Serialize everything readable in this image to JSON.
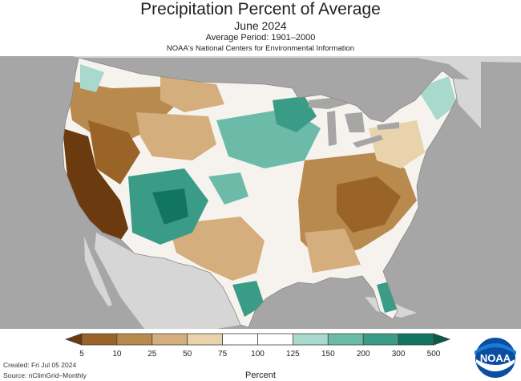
{
  "header": {
    "title": "Precipitation Percent of Average",
    "subtitle": "June 2024",
    "period": "Average Period: 1901–2000",
    "source_org": "NOAA's National Centers for Environmental Information"
  },
  "legend": {
    "ticks": [
      "5",
      "10",
      "25",
      "50",
      "75",
      "100",
      "125",
      "150",
      "200",
      "300",
      "500"
    ],
    "colors": [
      "#6b3a0e",
      "#9a6428",
      "#b98a4e",
      "#d4ae7c",
      "#e9d3ad",
      "#ffffff",
      "#ffffff",
      "#a9d8cc",
      "#6cbba9",
      "#3a9c86",
      "#127561",
      "#0d5a4a"
    ],
    "units": "Percent"
  },
  "footer": {
    "created": "Created: Fri Jul 05 2024",
    "source": "Source: nClimGrid–Monthly"
  },
  "logo": {
    "text": "NOAA",
    "icon": "noaa-logo-icon"
  },
  "map_colors": {
    "ocean": "#a6a6a6",
    "land_outside": "#d6d6d6",
    "lakes": "#a6a6a6",
    "borders": "#888888"
  }
}
